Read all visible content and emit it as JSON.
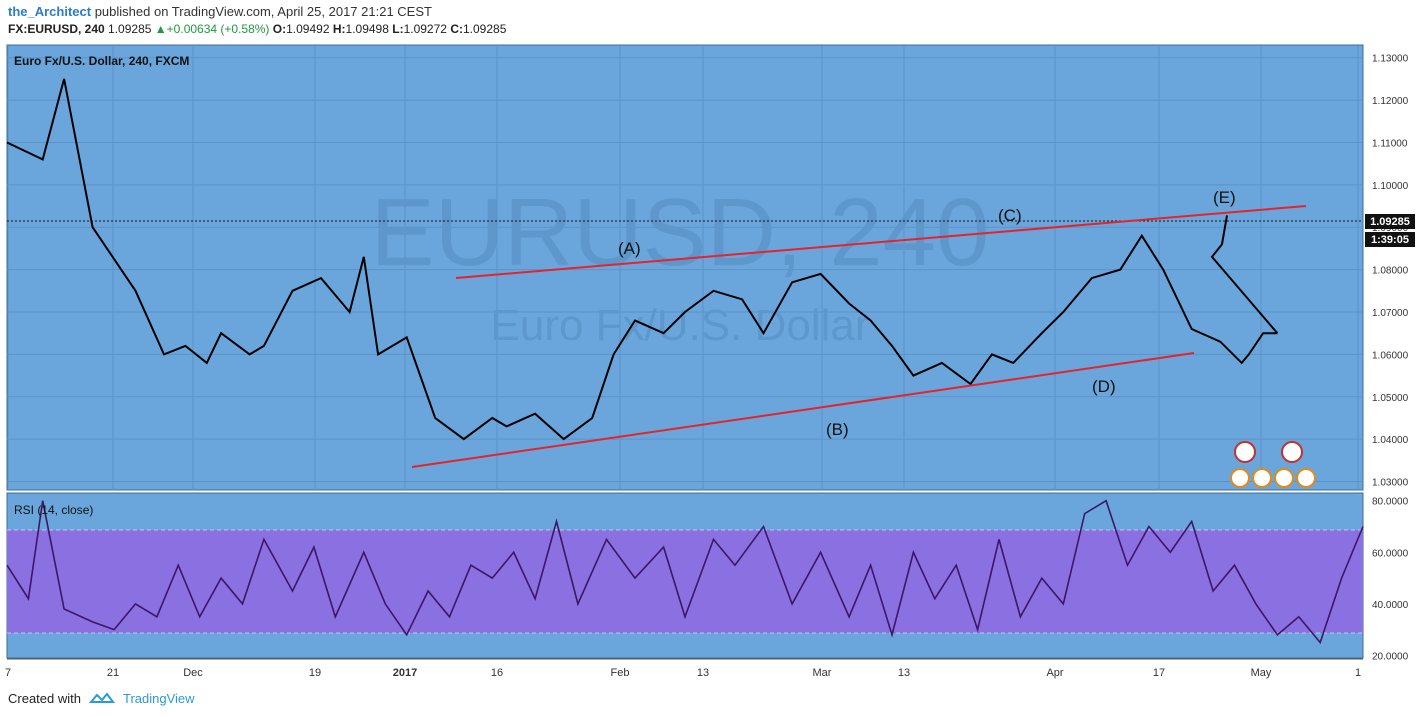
{
  "header": {
    "author": "the_Architect",
    "published": "published on TradingView.com, April 25, 2017 21:21 CEST",
    "symbol": "FX:EURUSD, 240",
    "last": "1.09285",
    "change": "+0.00634 (+0.58%)",
    "o_label": "O:",
    "o": "1.09492",
    "h_label": "H:",
    "h": "1.09498",
    "l_label": "L:",
    "l": "1.09272",
    "c_label": "C:",
    "c": "1.09285"
  },
  "main": {
    "title": "Euro Fx/U.S. Dollar, 240, FXCM",
    "watermark_symbol": "EURUSD, 240",
    "watermark_desc": "Euro Fx/U.S. Dollar",
    "price_tag": "1.09285",
    "countdown": "1:39:05"
  },
  "rsi": {
    "title": "RSI (14, close)"
  },
  "footer": {
    "created_with": "Created with",
    "brand": "TradingView"
  },
  "colors": {
    "panel": "#6aa6dc",
    "band": "#8a70e0",
    "trend": "#e3242b",
    "candles": "#000000",
    "rsi_line": "#3b1766"
  },
  "chart_data": [
    {
      "type": "line",
      "title": "Euro Fx/U.S. Dollar, 240, FXCM",
      "x": [
        0,
        5,
        8,
        12,
        18,
        22,
        25,
        28,
        30,
        34,
        36,
        40,
        44,
        48,
        50,
        52,
        56,
        60,
        64,
        68,
        70,
        74,
        78,
        82,
        85,
        88,
        92,
        95,
        99,
        103,
        106,
        110,
        114,
        118,
        121,
        124,
        127,
        131,
        135,
        138,
        141,
        145,
        148,
        152,
        156,
        159,
        162,
        166,
        170,
        173,
        174,
        176,
        178
      ],
      "values": [
        1.11,
        1.106,
        1.125,
        1.09,
        1.075,
        1.06,
        1.062,
        1.058,
        1.065,
        1.06,
        1.062,
        1.075,
        1.078,
        1.07,
        1.083,
        1.06,
        1.064,
        1.045,
        1.04,
        1.045,
        1.043,
        1.046,
        1.04,
        1.045,
        1.06,
        1.068,
        1.065,
        1.07,
        1.075,
        1.073,
        1.065,
        1.077,
        1.079,
        1.072,
        1.068,
        1.062,
        1.055,
        1.058,
        1.053,
        1.06,
        1.058,
        1.065,
        1.07,
        1.078,
        1.08,
        1.088,
        1.08,
        1.066,
        1.063,
        1.058,
        1.06,
        1.065,
        1.065
      ],
      "ylim": [
        1.028,
        1.133
      ],
      "yticks": [
        "1.03000",
        "1.04000",
        "1.05000",
        "1.06000",
        "1.07000",
        "1.08000",
        "1.09000",
        "1.10000",
        "1.11000",
        "1.12000",
        "1.13000"
      ],
      "xticks": [
        "7",
        "21",
        "Dec",
        "19",
        "2017",
        "16",
        "Feb",
        "13",
        "Mar",
        "13",
        "Apr",
        "17",
        "May",
        "1"
      ],
      "annotations": [
        "(A)",
        "(B)",
        "(C)",
        "(D)",
        "(E)"
      ],
      "grid": true
    },
    {
      "type": "line",
      "title": "RSI (14, close)",
      "x": [
        0,
        3,
        5,
        8,
        12,
        15,
        18,
        21,
        24,
        27,
        30,
        33,
        36,
        40,
        43,
        46,
        50,
        53,
        56,
        59,
        62,
        65,
        68,
        71,
        74,
        77,
        80,
        84,
        88,
        92,
        95,
        99,
        102,
        106,
        110,
        114,
        118,
        121,
        124,
        127,
        130,
        133,
        136,
        139,
        142,
        145,
        148,
        151,
        154,
        157,
        160,
        163,
        166,
        169,
        172,
        175,
        178,
        181,
        184,
        187,
        190
      ],
      "values": [
        55,
        42,
        80,
        38,
        33,
        30,
        40,
        35,
        55,
        35,
        50,
        40,
        65,
        45,
        62,
        35,
        60,
        40,
        28,
        45,
        35,
        55,
        50,
        60,
        42,
        72,
        40,
        65,
        50,
        62,
        35,
        65,
        55,
        70,
        40,
        60,
        35,
        55,
        28,
        60,
        42,
        55,
        30,
        65,
        35,
        50,
        40,
        75,
        80,
        55,
        70,
        60,
        72,
        45,
        55,
        40,
        28,
        35,
        25,
        50,
        70
      ],
      "ylim": [
        19,
        83
      ],
      "yticks": [
        "20.0000",
        "40.0000",
        "60.0000",
        "80.0000"
      ]
    }
  ]
}
